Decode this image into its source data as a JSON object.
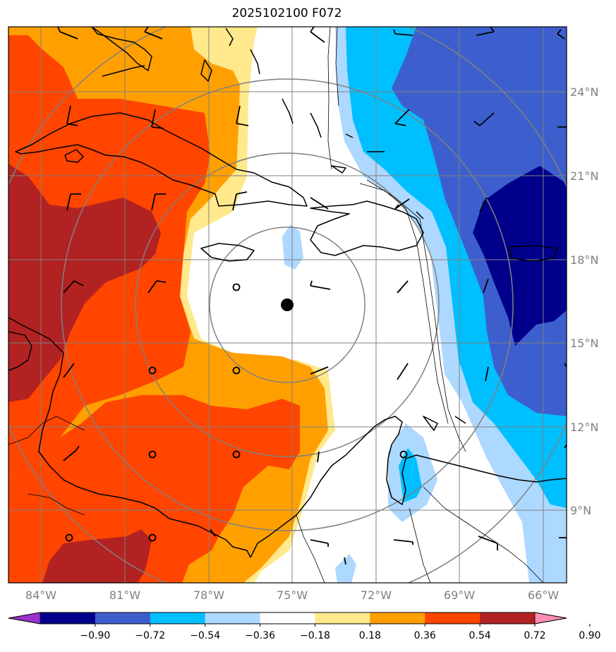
{
  "title": "2025102100 F072",
  "colors": {
    "frame": "#000000",
    "grid": "#808080",
    "coast": "#000000",
    "center_marker": "#000000"
  },
  "map": {
    "lon_ticks": [
      "84°W",
      "81°W",
      "78°W",
      "75°W",
      "72°W",
      "69°W",
      "66°W"
    ],
    "lat_ticks": [
      "24°N",
      "21°N",
      "18°N",
      "15°N",
      "12°N",
      "9°N"
    ],
    "range_rings": "concentric distance rings around storm center",
    "center_marker": "storm-center-dot",
    "wind_barbs": "wind-barb-icons",
    "calm_markers": "calm-circle-icons"
  },
  "colorbar": {
    "extend": "both",
    "colors": [
      "#9932cc",
      "#00008b",
      "#3d5fcd",
      "#00bfff",
      "#add8ff",
      "#ffffff",
      "#ffe98c",
      "#ffa000",
      "#ff4500",
      "#b22222",
      "#ff8cb4"
    ],
    "tick_labels": [
      "−0.90",
      "−0.72",
      "−0.54",
      "−0.36",
      "−0.18",
      "0.18",
      "0.36",
      "0.54",
      "0.72",
      "0.90"
    ]
  }
}
